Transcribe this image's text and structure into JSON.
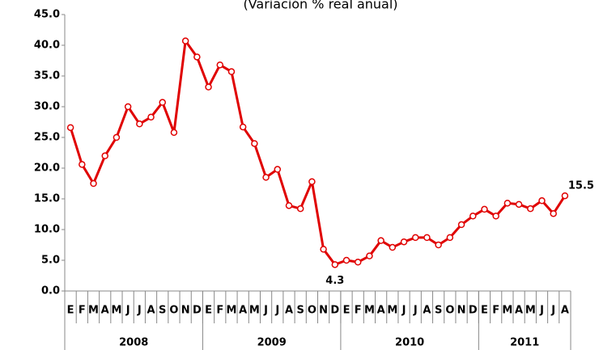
{
  "chart_data": {
    "type": "line",
    "subtitle": "(Variación % real anual)",
    "categories": [
      "E",
      "F",
      "M",
      "A",
      "M",
      "J",
      "J",
      "A",
      "S",
      "O",
      "N",
      "D",
      "E",
      "F",
      "M",
      "A",
      "M",
      "J",
      "J",
      "A",
      "S",
      "O",
      "N",
      "D",
      "E",
      "F",
      "M",
      "A",
      "M",
      "J",
      "J",
      "A",
      "S",
      "O",
      "N",
      "D",
      "E",
      "F",
      "M",
      "A",
      "M",
      "J",
      "J",
      "A"
    ],
    "x_groups": [
      {
        "label": "2008",
        "size": 12
      },
      {
        "label": "2009",
        "size": 12
      },
      {
        "label": "2010",
        "size": 12
      },
      {
        "label": "2011",
        "size": 8
      }
    ],
    "series": [
      {
        "color": "#e00000",
        "values": [
          26.6,
          20.6,
          17.5,
          22.0,
          25.0,
          30.0,
          27.2,
          28.3,
          30.7,
          25.8,
          40.7,
          38.1,
          33.2,
          36.8,
          35.7,
          26.7,
          24.0,
          18.5,
          19.8,
          13.9,
          13.4,
          17.8,
          6.8,
          4.3,
          5.0,
          4.7,
          5.7,
          8.2,
          7.1,
          8.0,
          8.7,
          8.7,
          7.5,
          8.7,
          10.8,
          12.2,
          13.3,
          12.2,
          14.3,
          14.1,
          13.4,
          14.7,
          12.6,
          15.5
        ],
        "value_labels": [
          null,
          null,
          null,
          null,
          null,
          null,
          null,
          null,
          null,
          null,
          null,
          null,
          null,
          null,
          null,
          null,
          null,
          null,
          null,
          null,
          null,
          null,
          null,
          "4.3",
          null,
          null,
          null,
          null,
          null,
          null,
          null,
          null,
          null,
          null,
          null,
          null,
          null,
          null,
          null,
          null,
          null,
          null,
          null,
          "15.5"
        ]
      }
    ],
    "ylim": [
      0,
      45
    ],
    "yticks": [
      {
        "value": 0,
        "label": "0.0"
      },
      {
        "value": 5,
        "label": "5.0"
      },
      {
        "value": 10,
        "label": "10.0"
      },
      {
        "value": 15,
        "label": "15.0"
      },
      {
        "value": 20,
        "label": "20.0"
      },
      {
        "value": 25,
        "label": "25.0"
      },
      {
        "value": 30,
        "label": "30.0"
      },
      {
        "value": 35,
        "label": "35.0"
      },
      {
        "value": 40,
        "label": "40.0"
      },
      {
        "value": 45,
        "label": "45.0"
      }
    ],
    "grid": false
  }
}
